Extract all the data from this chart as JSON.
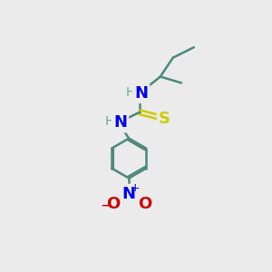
{
  "bg_color": "#ebebeb",
  "bond_color": "#4a8a7a",
  "bond_width": 1.8,
  "atom_colors": {
    "N": "#0000ee",
    "S": "#cccc00",
    "O": "#cc0000",
    "C": "#4a8a7a",
    "H": "#6aaa9a"
  },
  "font_size_atom": 13,
  "font_size_small": 10,
  "fig_bg": "#ebebeb"
}
